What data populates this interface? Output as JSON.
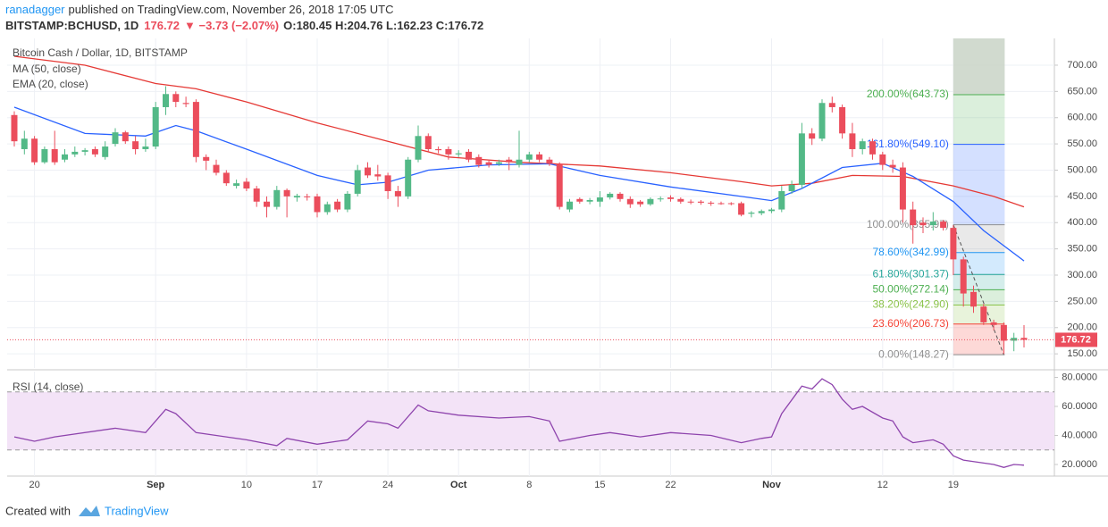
{
  "header": {
    "author": "ranadagger",
    "published": "published on TradingView.com, November 26, 2018 17:05 UTC",
    "symbol": "BITSTAMP:BCHUSD, 1D",
    "last": "176.72",
    "change": "▼ −3.73 (−2.07%)",
    "ohlc": "O:180.45 H:204.76 L:162.23 C:176.72"
  },
  "chart_data": [
    {
      "type": "candlestick",
      "title": "Bitcoin Cash / Dollar, 1D, BITSTAMP",
      "categories": [
        "Aug 18",
        "Aug 19",
        "Aug 20",
        "Aug 21",
        "Aug 22",
        "Aug 23",
        "Aug 24",
        "Aug 25",
        "Aug 26",
        "Aug 27",
        "Aug 28",
        "Aug 29",
        "Aug 30",
        "Aug 31",
        "Sep 1",
        "Sep 2",
        "Sep 3",
        "Sep 4",
        "Sep 5",
        "Sep 6",
        "Sep 7",
        "Sep 8",
        "Sep 9",
        "Sep 10",
        "Sep 11",
        "Sep 12",
        "Sep 13",
        "Sep 14",
        "Sep 15",
        "Sep 16",
        "Sep 17",
        "Sep 18",
        "Sep 19",
        "Sep 20",
        "Sep 21",
        "Sep 22",
        "Sep 23",
        "Sep 24",
        "Sep 25",
        "Sep 26",
        "Sep 27",
        "Sep 28",
        "Sep 29",
        "Sep 30",
        "Oct 1",
        "Oct 2",
        "Oct 3",
        "Oct 4",
        "Oct 5",
        "Oct 6",
        "Oct 7",
        "Oct 8",
        "Oct 9",
        "Oct 10",
        "Oct 11",
        "Oct 12",
        "Oct 13",
        "Oct 14",
        "Oct 15",
        "Oct 16",
        "Oct 17",
        "Oct 18",
        "Oct 19",
        "Oct 20",
        "Oct 21",
        "Oct 22",
        "Oct 23",
        "Oct 24",
        "Oct 25",
        "Oct 26",
        "Oct 27",
        "Oct 28",
        "Oct 29",
        "Oct 30",
        "Oct 31",
        "Nov 1",
        "Nov 2",
        "Nov 3",
        "Nov 4",
        "Nov 5",
        "Nov 6",
        "Nov 7",
        "Nov 8",
        "Nov 9",
        "Nov 10",
        "Nov 11",
        "Nov 12",
        "Nov 13",
        "Nov 14",
        "Nov 15",
        "Nov 16",
        "Nov 17",
        "Nov 18",
        "Nov 19",
        "Nov 20",
        "Nov 21",
        "Nov 22",
        "Nov 23",
        "Nov 24",
        "Nov 25",
        "Nov 26"
      ],
      "open": [
        605,
        540,
        560,
        515,
        540,
        520,
        530,
        535,
        540,
        525,
        550,
        572,
        555,
        540,
        545,
        620,
        645,
        628,
        630,
        525,
        510,
        495,
        470,
        478,
        465,
        440,
        430,
        462,
        448,
        450,
        450,
        420,
        440,
        425,
        455,
        505,
        492,
        490,
        460,
        450,
        520,
        565,
        540,
        540,
        530,
        535,
        525,
        515,
        512,
        520,
        510,
        520,
        530,
        520,
        512,
        425,
        445,
        440,
        440,
        448,
        455,
        445,
        440,
        435,
        445,
        448,
        445,
        440,
        440,
        438,
        437,
        437,
        437,
        417,
        418,
        422,
        425,
        460,
        472,
        570,
        560,
        628,
        620,
        570,
        540,
        555,
        530,
        510,
        505,
        425,
        400,
        395,
        402,
        390,
        330,
        268,
        240,
        210,
        205,
        175,
        180.45
      ],
      "high": [
        612,
        575,
        565,
        545,
        575,
        540,
        545,
        542,
        545,
        555,
        580,
        575,
        565,
        560,
        630,
        660,
        650,
        640,
        635,
        530,
        520,
        500,
        482,
        485,
        470,
        450,
        470,
        465,
        455,
        455,
        455,
        440,
        445,
        460,
        510,
        515,
        510,
        495,
        470,
        525,
        585,
        570,
        545,
        545,
        538,
        540,
        530,
        520,
        520,
        525,
        575,
        535,
        535,
        525,
        515,
        445,
        448,
        447,
        460,
        458,
        458,
        450,
        443,
        448,
        450,
        452,
        448,
        444,
        443,
        441,
        440,
        439,
        440,
        422,
        425,
        428,
        470,
        480,
        590,
        580,
        635,
        640,
        625,
        590,
        560,
        560,
        535,
        520,
        515,
        440,
        410,
        420,
        405,
        395,
        335,
        280,
        245,
        215,
        210,
        190,
        204.76
      ],
      "low": [
        545,
        530,
        510,
        512,
        510,
        515,
        525,
        528,
        525,
        520,
        545,
        550,
        530,
        535,
        540,
        605,
        620,
        620,
        515,
        500,
        490,
        470,
        465,
        460,
        430,
        410,
        425,
        410,
        440,
        442,
        410,
        415,
        420,
        420,
        450,
        485,
        480,
        445,
        430,
        445,
        515,
        535,
        532,
        520,
        525,
        515,
        505,
        505,
        508,
        500,
        505,
        515,
        515,
        508,
        425,
        420,
        436,
        435,
        430,
        444,
        440,
        428,
        430,
        432,
        440,
        440,
        436,
        435,
        434,
        432,
        434,
        433,
        412,
        410,
        414,
        418,
        420,
        455,
        465,
        548,
        555,
        610,
        560,
        525,
        530,
        520,
        500,
        495,
        400,
        360,
        380,
        385,
        385,
        300,
        240,
        228,
        205,
        195,
        150,
        155,
        162.23
      ],
      "close": [
        555,
        560,
        515,
        540,
        515,
        530,
        535,
        538,
        530,
        545,
        572,
        555,
        540,
        545,
        620,
        645,
        630,
        626,
        525,
        518,
        495,
        475,
        475,
        465,
        440,
        430,
        462,
        450,
        451,
        449,
        420,
        435,
        425,
        455,
        500,
        490,
        488,
        460,
        450,
        520,
        565,
        540,
        538,
        530,
        532,
        520,
        510,
        510,
        515,
        515,
        520,
        530,
        520,
        512,
        430,
        440,
        440,
        443,
        448,
        455,
        445,
        435,
        435,
        445,
        446,
        445,
        440,
        439,
        438,
        437,
        436,
        436,
        415,
        419,
        422,
        425,
        460,
        472,
        570,
        560,
        628,
        620,
        570,
        540,
        555,
        530,
        510,
        505,
        425,
        395,
        395,
        402,
        390,
        330,
        265,
        240,
        210,
        205,
        175,
        180.45,
        176.72
      ],
      "up_color": "#53b987",
      "down_color": "#eb4d5c",
      "ylim": [
        123,
        751
      ],
      "yticks": [
        {
          "value": 150,
          "label": "150.00"
        },
        {
          "value": 200,
          "label": "200.00"
        },
        {
          "value": 250,
          "label": "250.00"
        },
        {
          "value": 300,
          "label": "300.00"
        },
        {
          "value": 350,
          "label": "350.00"
        },
        {
          "value": 400,
          "label": "400.00"
        },
        {
          "value": 450,
          "label": "450.00"
        },
        {
          "value": 500,
          "label": "500.00"
        },
        {
          "value": 550,
          "label": "550.00"
        },
        {
          "value": 600,
          "label": "600.00"
        },
        {
          "value": 650,
          "label": "650.00"
        },
        {
          "value": 700,
          "label": "700.00"
        }
      ],
      "xticks": [
        {
          "value": "Aug 20",
          "label": "20"
        },
        {
          "value": "Sep 1",
          "label": "Sep"
        },
        {
          "value": "Sep 10",
          "label": "10"
        },
        {
          "value": "Sep 17",
          "label": "17"
        },
        {
          "value": "Sep 24",
          "label": "24"
        },
        {
          "value": "Oct 1",
          "label": "Oct"
        },
        {
          "value": "Oct 8",
          "label": "8"
        },
        {
          "value": "Oct 15",
          "label": "15"
        },
        {
          "value": "Oct 22",
          "label": "22"
        },
        {
          "value": "Nov 1",
          "label": "Nov"
        },
        {
          "value": "Nov 12",
          "label": "12"
        },
        {
          "value": "Nov 19",
          "label": "19"
        }
      ],
      "grid": true,
      "last_price": {
        "value": 176.72,
        "label": "176.72"
      },
      "lines": [
        {
          "name": "MA (50, close)",
          "color": "#e53935",
          "x": [
            "Aug 18",
            "Aug 25",
            "Sep 1",
            "Sep 5",
            "Sep 10",
            "Sep 17",
            "Sep 24",
            "Sep 30",
            "Oct 7",
            "Oct 15",
            "Oct 22",
            "Oct 29",
            "Nov 1",
            "Nov 5",
            "Nov 9",
            "Nov 14",
            "Nov 19",
            "Nov 23",
            "Nov 26"
          ],
          "values": [
            717,
            700,
            665,
            655,
            630,
            590,
            555,
            525,
            515,
            508,
            495,
            478,
            470,
            475,
            490,
            488,
            470,
            450,
            430
          ]
        },
        {
          "name": "EMA (20, close)",
          "color": "#2962ff",
          "x": [
            "Aug 18",
            "Aug 25",
            "Aug 31",
            "Sep 3",
            "Sep 5",
            "Sep 10",
            "Sep 17",
            "Sep 21",
            "Sep 24",
            "Sep 28",
            "Oct 4",
            "Oct 10",
            "Oct 15",
            "Oct 22",
            "Oct 29",
            "Nov 1",
            "Nov 4",
            "Nov 8",
            "Nov 12",
            "Nov 15",
            "Nov 19",
            "Nov 22",
            "Nov 26"
          ],
          "values": [
            620,
            570,
            565,
            585,
            575,
            540,
            490,
            472,
            477,
            500,
            510,
            512,
            490,
            468,
            450,
            442,
            465,
            505,
            513,
            488,
            440,
            385,
            327
          ]
        }
      ],
      "fib": {
        "levels": [
          {
            "label": "200.00%(643.73)",
            "value": 643.73,
            "color": "#4caf50"
          },
          {
            "label": "161.80%(549.10)",
            "value": 549.1,
            "color": "#2962ff"
          },
          {
            "label": "100.00%(395.97)",
            "value": 395.97,
            "color": "#909090"
          },
          {
            "label": "78.60%(342.99)",
            "value": 342.99,
            "color": "#2196f3"
          },
          {
            "label": "61.80%(301.37)",
            "value": 301.37,
            "color": "#26a69a"
          },
          {
            "label": "50.00%(272.14)",
            "value": 272.14,
            "color": "#4caf50"
          },
          {
            "label": "38.20%(242.90)",
            "value": 242.9,
            "color": "#8bc34a"
          },
          {
            "label": "23.60%(206.73)",
            "value": 206.73,
            "color": "#f44336"
          },
          {
            "label": "0.00%(148.27)",
            "value": 148.27,
            "color": "#909090"
          }
        ]
      }
    },
    {
      "type": "line",
      "title": "RSI (14, close)",
      "color": "#8e44ad",
      "x": [
        "Aug 18",
        "Aug 20",
        "Aug 22",
        "Aug 28",
        "Aug 31",
        "Sep 2",
        "Sep 3",
        "Sep 5",
        "Sep 10",
        "Sep 13",
        "Sep 14",
        "Sep 17",
        "Sep 20",
        "Sep 22",
        "Sep 24",
        "Sep 25",
        "Sep 27",
        "Sep 28",
        "Oct 1",
        "Oct 5",
        "Oct 8",
        "Oct 10",
        "Oct 11",
        "Oct 14",
        "Oct 16",
        "Oct 19",
        "Oct 22",
        "Oct 26",
        "Oct 29",
        "Oct 31",
        "Nov 1",
        "Nov 2",
        "Nov 4",
        "Nov 5",
        "Nov 6",
        "Nov 7",
        "Nov 8",
        "Nov 9",
        "Nov 10",
        "Nov 12",
        "Nov 13",
        "Nov 14",
        "Nov 15",
        "Nov 17",
        "Nov 18",
        "Nov 19",
        "Nov 20",
        "Nov 22",
        "Nov 23",
        "Nov 24",
        "Nov 25",
        "Nov 26"
      ],
      "values": [
        39,
        36,
        39,
        45,
        42,
        58,
        55,
        42,
        37,
        33,
        38,
        34,
        37,
        50,
        48,
        45,
        61,
        57,
        54,
        52,
        53,
        50,
        36,
        40,
        42,
        39,
        42,
        40,
        35,
        38,
        39,
        55,
        74,
        72,
        79,
        75,
        65,
        58,
        60,
        52,
        50,
        39,
        35,
        37,
        34,
        26,
        23,
        21,
        20,
        18,
        20,
        19.5
      ],
      "ylim": [
        12,
        84
      ],
      "yticks": [
        {
          "value": 20,
          "label": "20.0000"
        },
        {
          "value": 40,
          "label": "40.0000"
        },
        {
          "value": 60,
          "label": "60.0000"
        },
        {
          "value": 80,
          "label": "80.0000"
        }
      ],
      "bands": [
        30,
        70
      ],
      "band_color": "#f3e3f7"
    }
  ],
  "footer": {
    "created": "Created with",
    "brand": "TradingView"
  }
}
